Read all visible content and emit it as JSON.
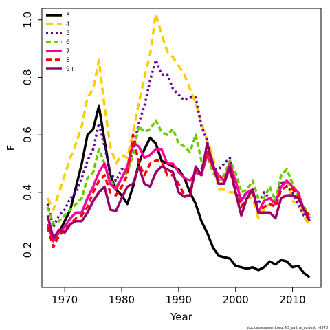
{
  "chart_data": {
    "type": "line",
    "xlabel": "Year",
    "ylabel": "F",
    "xlim": [
      1966,
      2015
    ],
    "ylim": [
      0.07,
      1.04
    ],
    "xticks": [
      1970,
      1980,
      1990,
      2000,
      2010
    ],
    "yticks": [
      0.2,
      0.4,
      0.6,
      0.8,
      1.0
    ],
    "ytick_labels": [
      "0.2",
      "0.4",
      "0.6",
      "0.8",
      "1.0"
    ],
    "legend_position": "top-left",
    "grid": false,
    "x": [
      1967,
      1968,
      1969,
      1970,
      1971,
      1972,
      1973,
      1974,
      1975,
      1976,
      1977,
      1978,
      1979,
      1980,
      1981,
      1982,
      1983,
      1984,
      1985,
      1986,
      1987,
      1988,
      1989,
      1990,
      1991,
      1992,
      1993,
      1994,
      1995,
      1996,
      1997,
      1998,
      1999,
      2000,
      2001,
      2002,
      2003,
      2004,
      2005,
      2006,
      2007,
      2008,
      2009,
      2010,
      2011,
      2012,
      2013
    ],
    "series": [
      {
        "name": "3",
        "color": "#000000",
        "dash": "solid",
        "values": [
          0.28,
          0.24,
          0.26,
          0.3,
          0.34,
          0.42,
          0.5,
          0.6,
          0.62,
          0.7,
          0.58,
          0.46,
          0.41,
          0.39,
          0.36,
          0.42,
          0.5,
          0.55,
          0.59,
          0.57,
          0.51,
          0.5,
          0.49,
          0.48,
          0.45,
          0.4,
          0.36,
          0.3,
          0.26,
          0.21,
          0.18,
          0.175,
          0.17,
          0.145,
          0.14,
          0.135,
          0.14,
          0.13,
          0.14,
          0.16,
          0.15,
          0.165,
          0.16,
          0.14,
          0.145,
          0.12,
          0.105
        ]
      },
      {
        "name": "4",
        "color": "#FFCC00",
        "dash": "10,6",
        "values": [
          0.38,
          0.34,
          0.4,
          0.46,
          0.52,
          0.57,
          0.63,
          0.73,
          0.76,
          0.86,
          0.7,
          0.56,
          0.5,
          0.53,
          0.52,
          0.61,
          0.71,
          0.8,
          0.88,
          1.02,
          0.95,
          0.89,
          0.87,
          0.84,
          0.81,
          0.76,
          0.71,
          0.64,
          0.58,
          0.53,
          0.41,
          0.41,
          0.4,
          0.4,
          0.37,
          0.38,
          0.38,
          0.31,
          0.34,
          0.36,
          0.36,
          0.46,
          0.44,
          0.37,
          0.36,
          0.32,
          0.28
        ]
      },
      {
        "name": "5",
        "color": "#660099",
        "dash": "3,4",
        "values": [
          0.36,
          0.28,
          0.32,
          0.34,
          0.38,
          0.4,
          0.45,
          0.51,
          0.55,
          0.64,
          0.56,
          0.47,
          0.44,
          0.48,
          0.48,
          0.55,
          0.64,
          0.7,
          0.79,
          0.86,
          0.81,
          0.81,
          0.76,
          0.74,
          0.72,
          0.73,
          0.73,
          0.63,
          0.58,
          0.48,
          0.48,
          0.5,
          0.52,
          0.4,
          0.38,
          0.4,
          0.4,
          0.36,
          0.4,
          0.38,
          0.37,
          0.44,
          0.42,
          0.4,
          0.36,
          0.32,
          0.31
        ]
      },
      {
        "name": "6",
        "color": "#66CC00",
        "dash": "7,4",
        "values": [
          0.35,
          0.29,
          0.3,
          0.32,
          0.34,
          0.36,
          0.38,
          0.45,
          0.47,
          0.55,
          0.5,
          0.44,
          0.42,
          0.45,
          0.47,
          0.53,
          0.63,
          0.61,
          0.62,
          0.65,
          0.61,
          0.6,
          0.62,
          0.57,
          0.56,
          0.54,
          0.6,
          0.51,
          0.53,
          0.47,
          0.44,
          0.46,
          0.51,
          0.47,
          0.4,
          0.41,
          0.44,
          0.38,
          0.38,
          0.42,
          0.37,
          0.46,
          0.48,
          0.43,
          0.38,
          0.35,
          0.32
        ]
      },
      {
        "name": "7",
        "color": "#FF0099",
        "dash": "solid",
        "values": [
          0.29,
          0.23,
          0.26,
          0.28,
          0.31,
          0.33,
          0.33,
          0.38,
          0.42,
          0.47,
          0.5,
          0.43,
          0.41,
          0.45,
          0.49,
          0.57,
          0.56,
          0.52,
          0.53,
          0.55,
          0.55,
          0.5,
          0.5,
          0.47,
          0.45,
          0.44,
          0.47,
          0.46,
          0.53,
          0.49,
          0.46,
          0.44,
          0.5,
          0.44,
          0.37,
          0.4,
          0.41,
          0.33,
          0.37,
          0.38,
          0.36,
          0.42,
          0.44,
          0.42,
          0.4,
          0.34,
          0.31
        ]
      },
      {
        "name": "8",
        "color": "#FF0000",
        "dash": "8,5",
        "values": [
          0.28,
          0.21,
          0.25,
          0.27,
          0.29,
          0.31,
          0.32,
          0.35,
          0.4,
          0.44,
          0.46,
          0.4,
          0.39,
          0.42,
          0.46,
          0.6,
          0.5,
          0.46,
          0.5,
          0.51,
          0.51,
          0.46,
          0.46,
          0.43,
          0.39,
          0.39,
          0.48,
          0.48,
          0.54,
          0.49,
          0.44,
          0.44,
          0.48,
          0.4,
          0.35,
          0.38,
          0.4,
          0.33,
          0.35,
          0.36,
          0.35,
          0.41,
          0.42,
          0.41,
          0.39,
          0.34,
          0.32
        ]
      },
      {
        "name": "9+",
        "color": "#990066",
        "dash": "solid",
        "values": [
          0.32,
          0.24,
          0.27,
          0.26,
          0.29,
          0.3,
          0.3,
          0.33,
          0.37,
          0.4,
          0.42,
          0.34,
          0.335,
          0.38,
          0.42,
          0.43,
          0.49,
          0.43,
          0.42,
          0.47,
          0.49,
          0.48,
          0.47,
          0.4,
          0.385,
          0.39,
          0.49,
          0.46,
          0.57,
          0.5,
          0.43,
          0.43,
          0.49,
          0.4,
          0.32,
          0.38,
          0.41,
          0.33,
          0.33,
          0.33,
          0.31,
          0.38,
          0.39,
          0.39,
          0.38,
          0.34,
          0.3
        ]
      }
    ]
  },
  "caption": "stockassessment.org, NS_saithe_cortest, r6573"
}
